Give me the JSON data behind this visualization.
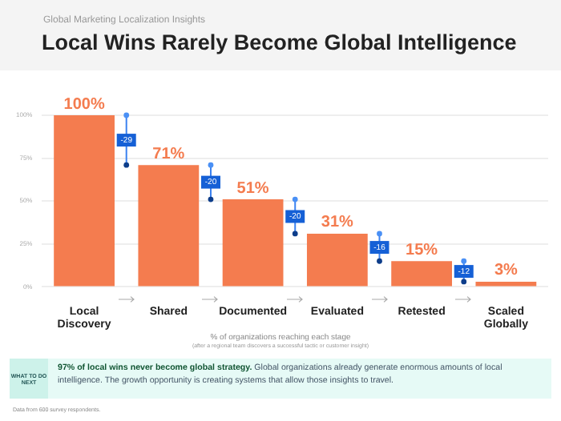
{
  "chart_data": {
    "type": "bar",
    "subtitle": "Global Marketing Localization Insights",
    "title": "Local Wins Rarely Become Global Intelligence",
    "categories": [
      "Local Discovery",
      "Shared",
      "Documented",
      "Evaluated",
      "Retested",
      "Scaled Globally"
    ],
    "series": [
      {
        "color": "#f47c4f",
        "values": [
          100,
          71,
          51,
          31,
          15,
          3
        ],
        "value_labels": [
          "100%",
          "71%",
          "51%",
          "31%",
          "15%",
          "3%"
        ]
      }
    ],
    "ylim": [
      0,
      100
    ],
    "yticks": [
      {
        "value": 0,
        "label": "0%"
      },
      {
        "value": 25,
        "label": "25%"
      },
      {
        "value": 50,
        "label": "50%"
      },
      {
        "value": 75,
        "label": "75%"
      },
      {
        "value": 100,
        "label": "100%"
      }
    ],
    "grid": "y",
    "legend": false,
    "xlabel": "% of organizations reaching each stage",
    "annotations": [
      "-29",
      "-20",
      "-20",
      "-16",
      "-12",
      "(after a regional team discovers a successful tactic or customer insight)",
      "WHAT TO DO NEXT",
      "97% of local wins never become global strategy.",
      "Global organizations already generate enormous amounts of local intelligence. The growth opportunity is creating systems that allow those insights to travel.",
      "Data from 600 survey respondents."
    ]
  }
}
